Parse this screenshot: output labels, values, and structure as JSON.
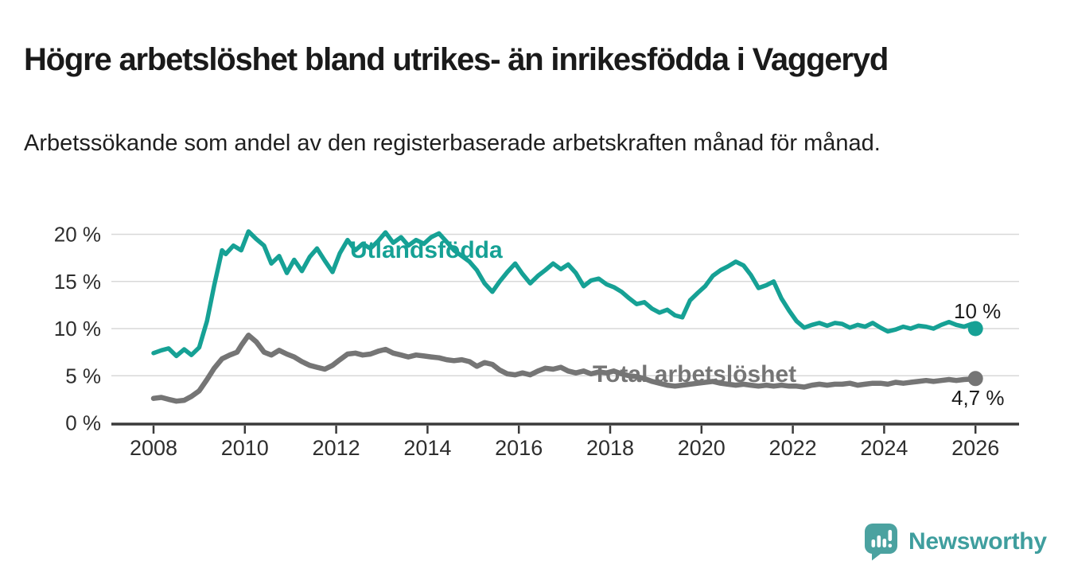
{
  "header": {
    "title": "Högre arbetslöshet bland utrikes- än inrikesfödda i Vaggeryd",
    "subtitle": "Arbetssökande som andel av den registerbaserade arbetskraften månad för månad."
  },
  "footer": {
    "brand": "Newsworthy"
  },
  "colors": {
    "utlandsfodda_line": "#16A195",
    "total_line": "#757575",
    "grid": "#d8d8d8",
    "axis": "#3a3a3a",
    "label_text": "#1a1a1a",
    "tick_text": "#2e2e2e",
    "brand_teal": "#4BA2A0"
  },
  "chart_data": {
    "type": "line",
    "x_axis": {
      "ticks": [
        2008,
        2010,
        2012,
        2014,
        2016,
        2018,
        2020,
        2022,
        2024,
        2026
      ],
      "range": [
        2007.1,
        2027
      ]
    },
    "y_axis": {
      "tick_values": [
        0,
        5,
        10,
        15,
        20
      ],
      "tick_labels": [
        "0 %",
        "5 %",
        "10 %",
        "15 %",
        "20 %"
      ],
      "range": [
        0,
        21
      ],
      "grid": true
    },
    "series": [
      {
        "name": "Utlandsfödda",
        "label": "Utlandsfödda",
        "color": "#16A195",
        "end_label": "10 %",
        "end_value": 10.0,
        "points": [
          [
            2008.0,
            7.4
          ],
          [
            2008.17,
            7.7
          ],
          [
            2008.33,
            7.9
          ],
          [
            2008.5,
            7.1
          ],
          [
            2008.67,
            7.8
          ],
          [
            2008.83,
            7.2
          ],
          [
            2009.0,
            8.0
          ],
          [
            2009.17,
            10.8
          ],
          [
            2009.33,
            14.6
          ],
          [
            2009.5,
            18.3
          ],
          [
            2009.58,
            17.9
          ],
          [
            2009.75,
            18.8
          ],
          [
            2009.92,
            18.3
          ],
          [
            2010.08,
            20.3
          ],
          [
            2010.25,
            19.5
          ],
          [
            2010.42,
            18.8
          ],
          [
            2010.58,
            16.9
          ],
          [
            2010.75,
            17.7
          ],
          [
            2010.92,
            15.9
          ],
          [
            2011.08,
            17.3
          ],
          [
            2011.25,
            16.1
          ],
          [
            2011.42,
            17.6
          ],
          [
            2011.58,
            18.5
          ],
          [
            2011.75,
            17.2
          ],
          [
            2011.92,
            16.0
          ],
          [
            2012.08,
            18.0
          ],
          [
            2012.25,
            19.4
          ],
          [
            2012.42,
            18.3
          ],
          [
            2012.58,
            19.0
          ],
          [
            2012.75,
            18.5
          ],
          [
            2012.92,
            19.3
          ],
          [
            2013.08,
            20.2
          ],
          [
            2013.25,
            19.1
          ],
          [
            2013.42,
            19.7
          ],
          [
            2013.58,
            18.8
          ],
          [
            2013.75,
            19.4
          ],
          [
            2013.92,
            19.0
          ],
          [
            2014.08,
            19.7
          ],
          [
            2014.25,
            20.1
          ],
          [
            2014.42,
            19.2
          ],
          [
            2014.58,
            18.3
          ],
          [
            2014.75,
            17.7
          ],
          [
            2014.92,
            17.1
          ],
          [
            2015.08,
            16.2
          ],
          [
            2015.25,
            14.8
          ],
          [
            2015.42,
            13.9
          ],
          [
            2015.58,
            15.0
          ],
          [
            2015.75,
            16.0
          ],
          [
            2015.92,
            16.9
          ],
          [
            2016.08,
            15.8
          ],
          [
            2016.25,
            14.8
          ],
          [
            2016.42,
            15.6
          ],
          [
            2016.58,
            16.2
          ],
          [
            2016.75,
            16.9
          ],
          [
            2016.92,
            16.3
          ],
          [
            2017.08,
            16.8
          ],
          [
            2017.25,
            15.9
          ],
          [
            2017.42,
            14.5
          ],
          [
            2017.58,
            15.1
          ],
          [
            2017.75,
            15.3
          ],
          [
            2017.92,
            14.7
          ],
          [
            2018.08,
            14.4
          ],
          [
            2018.25,
            13.9
          ],
          [
            2018.42,
            13.2
          ],
          [
            2018.58,
            12.6
          ],
          [
            2018.75,
            12.8
          ],
          [
            2018.92,
            12.1
          ],
          [
            2019.08,
            11.7
          ],
          [
            2019.25,
            12.0
          ],
          [
            2019.42,
            11.4
          ],
          [
            2019.58,
            11.2
          ],
          [
            2019.75,
            13.0
          ],
          [
            2019.92,
            13.8
          ],
          [
            2020.08,
            14.5
          ],
          [
            2020.25,
            15.6
          ],
          [
            2020.42,
            16.2
          ],
          [
            2020.58,
            16.6
          ],
          [
            2020.75,
            17.1
          ],
          [
            2020.92,
            16.7
          ],
          [
            2021.08,
            15.7
          ],
          [
            2021.25,
            14.3
          ],
          [
            2021.42,
            14.6
          ],
          [
            2021.58,
            15.0
          ],
          [
            2021.75,
            13.2
          ],
          [
            2021.92,
            11.9
          ],
          [
            2022.08,
            10.8
          ],
          [
            2022.25,
            10.1
          ],
          [
            2022.42,
            10.4
          ],
          [
            2022.58,
            10.6
          ],
          [
            2022.75,
            10.3
          ],
          [
            2022.92,
            10.6
          ],
          [
            2023.08,
            10.5
          ],
          [
            2023.25,
            10.1
          ],
          [
            2023.42,
            10.4
          ],
          [
            2023.58,
            10.2
          ],
          [
            2023.75,
            10.6
          ],
          [
            2023.92,
            10.1
          ],
          [
            2024.08,
            9.7
          ],
          [
            2024.25,
            9.9
          ],
          [
            2024.42,
            10.2
          ],
          [
            2024.58,
            10.0
          ],
          [
            2024.75,
            10.3
          ],
          [
            2024.92,
            10.2
          ],
          [
            2025.08,
            10.0
          ],
          [
            2025.25,
            10.4
          ],
          [
            2025.42,
            10.7
          ],
          [
            2025.58,
            10.4
          ],
          [
            2025.75,
            10.2
          ],
          [
            2025.92,
            10.5
          ],
          [
            2026.0,
            10.0
          ]
        ]
      },
      {
        "name": "Total arbetslöshet",
        "label": "Total arbetslöshet",
        "color": "#757575",
        "end_label": "4,7 %",
        "end_value": 4.7,
        "points": [
          [
            2008.0,
            2.6
          ],
          [
            2008.17,
            2.7
          ],
          [
            2008.33,
            2.5
          ],
          [
            2008.5,
            2.3
          ],
          [
            2008.67,
            2.4
          ],
          [
            2008.83,
            2.8
          ],
          [
            2009.0,
            3.4
          ],
          [
            2009.17,
            4.6
          ],
          [
            2009.33,
            5.8
          ],
          [
            2009.5,
            6.8
          ],
          [
            2009.67,
            7.2
          ],
          [
            2009.83,
            7.5
          ],
          [
            2009.92,
            8.2
          ],
          [
            2010.08,
            9.3
          ],
          [
            2010.25,
            8.6
          ],
          [
            2010.42,
            7.5
          ],
          [
            2010.58,
            7.2
          ],
          [
            2010.75,
            7.7
          ],
          [
            2010.92,
            7.3
          ],
          [
            2011.08,
            7.0
          ],
          [
            2011.25,
            6.5
          ],
          [
            2011.42,
            6.1
          ],
          [
            2011.58,
            5.9
          ],
          [
            2011.75,
            5.7
          ],
          [
            2011.92,
            6.1
          ],
          [
            2012.08,
            6.7
          ],
          [
            2012.25,
            7.3
          ],
          [
            2012.42,
            7.4
          ],
          [
            2012.58,
            7.2
          ],
          [
            2012.75,
            7.3
          ],
          [
            2012.92,
            7.6
          ],
          [
            2013.08,
            7.8
          ],
          [
            2013.25,
            7.4
          ],
          [
            2013.42,
            7.2
          ],
          [
            2013.58,
            7.0
          ],
          [
            2013.75,
            7.2
          ],
          [
            2013.92,
            7.1
          ],
          [
            2014.08,
            7.0
          ],
          [
            2014.25,
            6.9
          ],
          [
            2014.42,
            6.7
          ],
          [
            2014.58,
            6.6
          ],
          [
            2014.75,
            6.7
          ],
          [
            2014.92,
            6.5
          ],
          [
            2015.08,
            6.0
          ],
          [
            2015.25,
            6.4
          ],
          [
            2015.42,
            6.2
          ],
          [
            2015.58,
            5.6
          ],
          [
            2015.75,
            5.2
          ],
          [
            2015.92,
            5.1
          ],
          [
            2016.08,
            5.3
          ],
          [
            2016.25,
            5.1
          ],
          [
            2016.42,
            5.5
          ],
          [
            2016.58,
            5.8
          ],
          [
            2016.75,
            5.7
          ],
          [
            2016.92,
            5.9
          ],
          [
            2017.08,
            5.5
          ],
          [
            2017.25,
            5.3
          ],
          [
            2017.42,
            5.5
          ],
          [
            2017.58,
            5.2
          ],
          [
            2017.75,
            5.4
          ],
          [
            2017.92,
            5.3
          ],
          [
            2018.08,
            5.5
          ],
          [
            2018.25,
            5.2
          ],
          [
            2018.42,
            5.0
          ],
          [
            2018.58,
            4.9
          ],
          [
            2018.75,
            4.7
          ],
          [
            2018.92,
            4.4
          ],
          [
            2019.08,
            4.2
          ],
          [
            2019.25,
            4.0
          ],
          [
            2019.42,
            3.9
          ],
          [
            2019.58,
            4.0
          ],
          [
            2019.75,
            4.1
          ],
          [
            2019.92,
            4.2
          ],
          [
            2020.08,
            4.3
          ],
          [
            2020.25,
            4.4
          ],
          [
            2020.42,
            4.2
          ],
          [
            2020.58,
            4.1
          ],
          [
            2020.75,
            4.0
          ],
          [
            2020.92,
            4.1
          ],
          [
            2021.08,
            4.0
          ],
          [
            2021.25,
            3.9
          ],
          [
            2021.42,
            4.0
          ],
          [
            2021.58,
            3.9
          ],
          [
            2021.75,
            4.0
          ],
          [
            2021.92,
            3.9
          ],
          [
            2022.08,
            3.9
          ],
          [
            2022.25,
            3.8
          ],
          [
            2022.42,
            4.0
          ],
          [
            2022.58,
            4.1
          ],
          [
            2022.75,
            4.0
          ],
          [
            2022.92,
            4.1
          ],
          [
            2023.08,
            4.1
          ],
          [
            2023.25,
            4.2
          ],
          [
            2023.42,
            4.0
          ],
          [
            2023.58,
            4.1
          ],
          [
            2023.75,
            4.2
          ],
          [
            2023.92,
            4.2
          ],
          [
            2024.08,
            4.1
          ],
          [
            2024.25,
            4.3
          ],
          [
            2024.42,
            4.2
          ],
          [
            2024.58,
            4.3
          ],
          [
            2024.75,
            4.4
          ],
          [
            2024.92,
            4.5
          ],
          [
            2025.08,
            4.4
          ],
          [
            2025.25,
            4.5
          ],
          [
            2025.42,
            4.6
          ],
          [
            2025.58,
            4.5
          ],
          [
            2025.75,
            4.6
          ],
          [
            2025.92,
            4.65
          ],
          [
            2026.0,
            4.7
          ]
        ]
      }
    ]
  }
}
